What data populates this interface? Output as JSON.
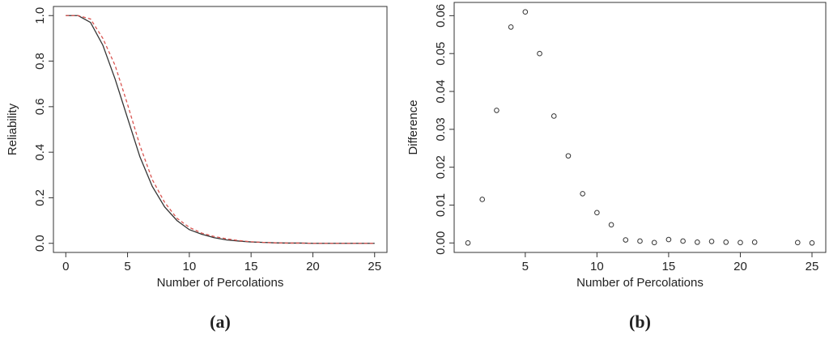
{
  "chart_data": [
    {
      "type": "line",
      "caption": "(a)",
      "x_label": "Number of Percolations",
      "y_label": "Reliability",
      "x": [
        0,
        1,
        2,
        3,
        4,
        5,
        6,
        7,
        8,
        9,
        10,
        11,
        12,
        13,
        14,
        15,
        16,
        17,
        18,
        19,
        20,
        21,
        22,
        23,
        24,
        25
      ],
      "series": [
        {
          "color": "#333333",
          "dash": false,
          "values": [
            1.0,
            1.0,
            0.97,
            0.87,
            0.72,
            0.55,
            0.38,
            0.25,
            0.16,
            0.1,
            0.06,
            0.04,
            0.025,
            0.015,
            0.01,
            0.006,
            0.004,
            0.002,
            0.001,
            0.001,
            0,
            0,
            0,
            0,
            0,
            0
          ]
        },
        {
          "color": "#d9534f",
          "dash": true,
          "values": [
            1.0,
            1.0,
            0.985,
            0.9,
            0.78,
            0.61,
            0.43,
            0.28,
            0.18,
            0.11,
            0.07,
            0.045,
            0.03,
            0.02,
            0.012,
            0.007,
            0.004,
            0.002,
            0.001,
            0.001,
            0,
            0,
            0,
            0,
            0,
            0
          ]
        }
      ],
      "xlim": [
        -1,
        26
      ],
      "ylim": [
        -0.04,
        1.04
      ],
      "xticks": [
        0,
        5,
        10,
        15,
        20,
        25
      ],
      "yticks": [
        {
          "value": 0,
          "label": "0.0"
        },
        0.2,
        0.4,
        0.6,
        0.8,
        {
          "value": 1,
          "label": "1.0"
        }
      ]
    },
    {
      "type": "scatter",
      "caption": "(b)",
      "x_label": "Number of Percolations",
      "y_label": "Difference",
      "x": [
        1,
        2,
        3,
        4,
        5,
        6,
        7,
        8,
        9,
        10,
        11,
        12,
        13,
        14,
        15,
        16,
        17,
        18,
        19,
        20,
        21,
        24,
        25
      ],
      "color": "#333333",
      "values": [
        0.0,
        0.0115,
        0.035,
        0.057,
        0.061,
        0.05,
        0.0335,
        0.023,
        0.013,
        0.008,
        0.0048,
        0.0008,
        0.0005,
        0.0001,
        0.0009,
        0.0005,
        0.0002,
        0.0004,
        0.0002,
        0.0001,
        0.0002,
        0.0001,
        0.0
      ],
      "xlim": [
        0.04,
        25.96
      ],
      "ylim": [
        -0.0025,
        0.0635
      ],
      "xticks": [
        5,
        10,
        15,
        20,
        25
      ],
      "yticks": [
        {
          "value": 0,
          "label": "0.00"
        },
        0.01,
        0.02,
        0.03,
        0.04,
        0.05,
        0.06
      ]
    }
  ]
}
